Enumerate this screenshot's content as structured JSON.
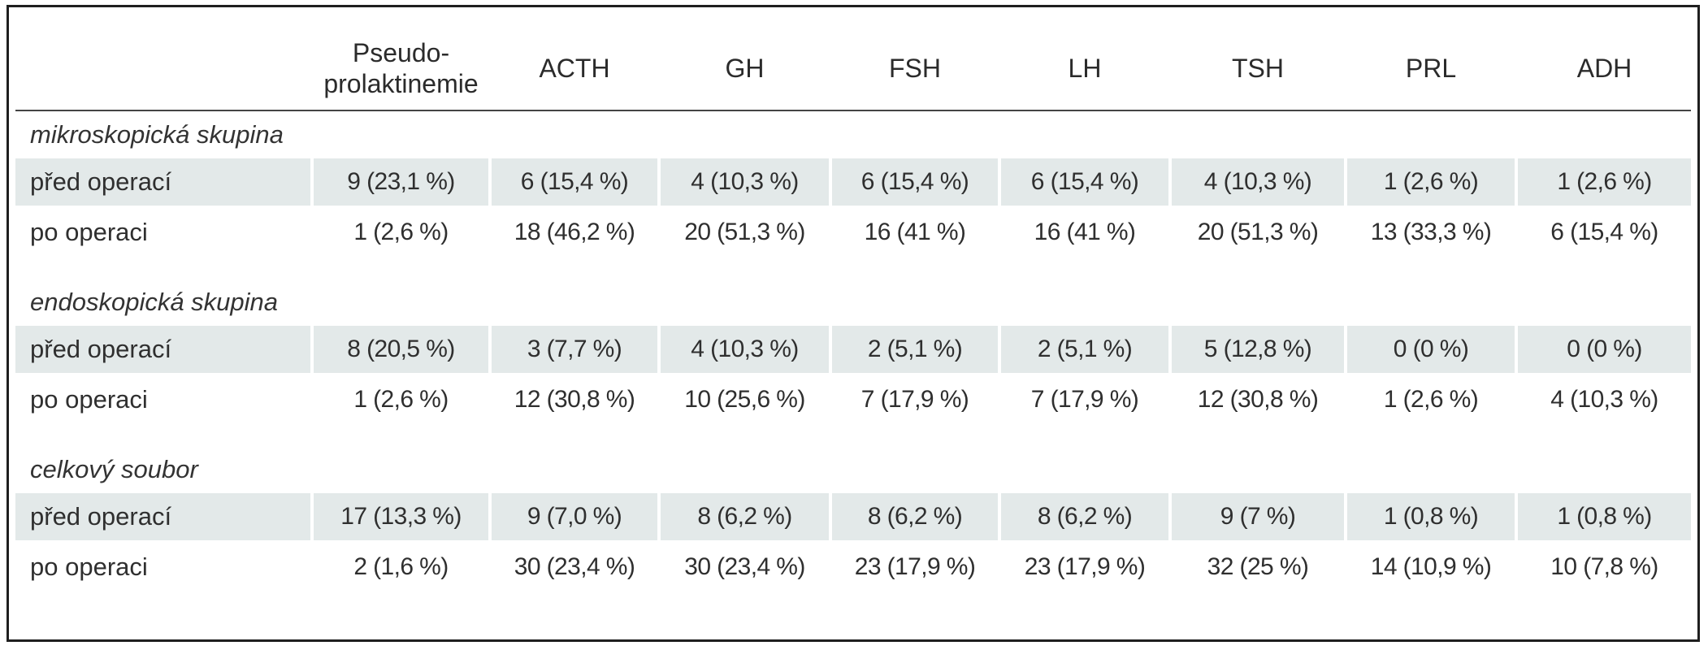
{
  "table": {
    "columns": [
      "",
      "Pseudo-\nprolaktinemie",
      "ACTH",
      "GH",
      "FSH",
      "LH",
      "TSH",
      "PRL",
      "ADH"
    ],
    "groups": [
      {
        "name": "mikroskopická skupina",
        "rows": [
          {
            "label": "před operací",
            "values": [
              "9 (23,1 %)",
              "6 (15,4 %)",
              "4 (10,3 %)",
              "6 (15,4 %)",
              "6 (15,4 %)",
              "4 (10,3 %)",
              "1 (2,6 %)",
              "1 (2,6 %)"
            ]
          },
          {
            "label": "po operaci",
            "values": [
              "1 (2,6 %)",
              "18 (46,2 %)",
              "20 (51,3 %)",
              "16 (41 %)",
              "16 (41 %)",
              "20 (51,3 %)",
              "13 (33,3 %)",
              "6 (15,4 %)"
            ]
          }
        ]
      },
      {
        "name": "endoskopická skupina",
        "rows": [
          {
            "label": "před operací",
            "values": [
              "8 (20,5 %)",
              "3 (7,7 %)",
              "4 (10,3 %)",
              "2 (5,1 %)",
              "2 (5,1 %)",
              "5 (12,8  %)",
              "0 (0 %)",
              "0 (0 %)"
            ]
          },
          {
            "label": "po operaci",
            "values": [
              "1 (2,6 %)",
              "12 (30,8 %)",
              "10 (25,6 %)",
              "7 (17,9 %)",
              "7 (17,9 %)",
              "12 (30,8 %)",
              "1 (2,6 %)",
              "4 (10,3 %)"
            ]
          }
        ]
      },
      {
        "name": "celkový soubor",
        "rows": [
          {
            "label": "před operací",
            "values": [
              "17 (13,3 %)",
              "9 (7,0 %)",
              "8 (6,2 %)",
              "8 (6,2 %)",
              "8 (6,2 %)",
              "9 (7 %)",
              "1 (0,8 %)",
              "1 (0,8 %)"
            ]
          },
          {
            "label": "po operaci",
            "values": [
              "2 (1,6 %)",
              "30 (23,4 %)",
              "30 (23,4 %)",
              "23 (17,9 %)",
              "23 (17,9 %)",
              "32 (25 %)",
              "14 (10,9 %)",
              "10 (7,8 %)"
            ]
          }
        ]
      }
    ]
  },
  "colors": {
    "shade": "#e3e9e9",
    "border": "#1f1f1f",
    "text": "#2b2b2b"
  }
}
